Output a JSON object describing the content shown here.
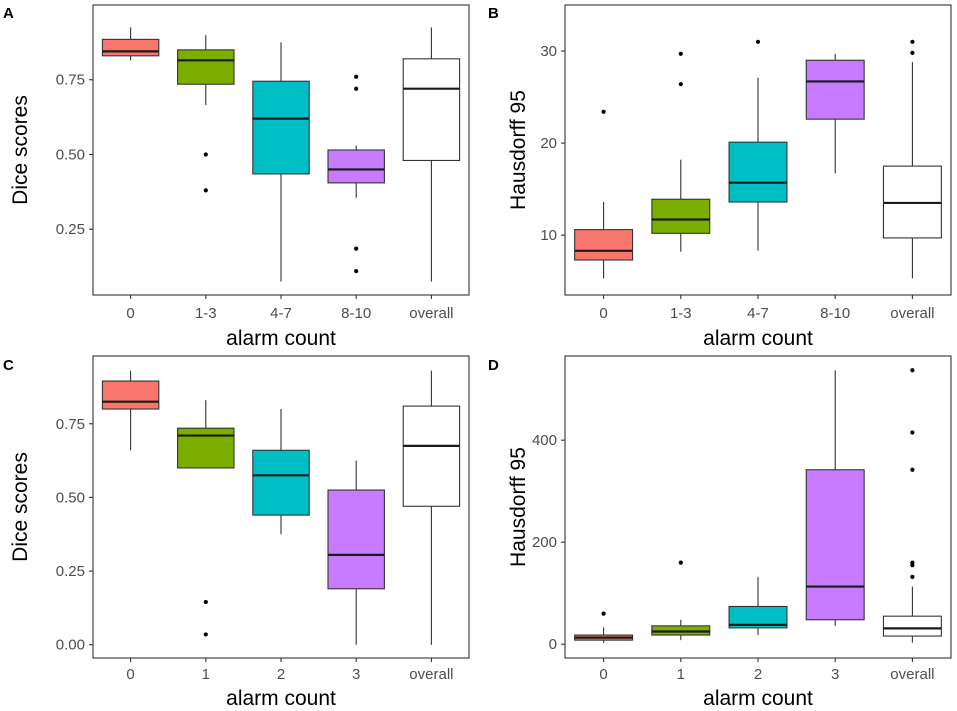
{
  "chart_data": [
    {
      "panel": "A",
      "type": "box",
      "xlabel": "alarm count",
      "ylabel": "Dice scores",
      "ylim": [
        0.03,
        1.0
      ],
      "yticks": [
        "0.25",
        "0.50",
        "0.75"
      ],
      "ytick_values": [
        0.25,
        0.5,
        0.75
      ],
      "categories": [
        "0",
        "1-3",
        "4-7",
        "8-10",
        "overall"
      ],
      "boxes": [
        {
          "category": "0",
          "color": "#F8766D",
          "q1": 0.83,
          "median": 0.845,
          "q3": 0.885,
          "whisker_low": 0.815,
          "whisker_high": 0.925,
          "outliers": []
        },
        {
          "category": "1-3",
          "color": "#7CAE00",
          "q1": 0.735,
          "median": 0.815,
          "q3": 0.85,
          "whisker_low": 0.665,
          "whisker_high": 0.9,
          "outliers": [
            0.5,
            0.38
          ]
        },
        {
          "category": "4-7",
          "color": "#00BFC4",
          "q1": 0.435,
          "median": 0.62,
          "q3": 0.745,
          "whisker_low": 0.075,
          "whisker_high": 0.875,
          "outliers": []
        },
        {
          "category": "8-10",
          "color": "#C77CFF",
          "q1": 0.405,
          "median": 0.45,
          "q3": 0.515,
          "whisker_low": 0.355,
          "whisker_high": 0.53,
          "outliers": [
            0.76,
            0.72,
            0.185,
            0.11
          ]
        },
        {
          "category": "overall",
          "color": "#FFFFFF",
          "q1": 0.48,
          "median": 0.72,
          "q3": 0.82,
          "whisker_low": 0.075,
          "whisker_high": 0.925,
          "outliers": []
        }
      ]
    },
    {
      "panel": "B",
      "type": "box",
      "xlabel": "alarm count",
      "ylabel": "Hausdorff 95",
      "ylim": [
        3.5,
        35.0
      ],
      "yticks": [
        "10",
        "20",
        "30"
      ],
      "ytick_values": [
        10,
        20,
        30
      ],
      "categories": [
        "0",
        "1-3",
        "4-7",
        "8-10",
        "overall"
      ],
      "boxes": [
        {
          "category": "0",
          "color": "#F8766D",
          "q1": 7.3,
          "median": 8.3,
          "q3": 10.6,
          "whisker_low": 5.3,
          "whisker_high": 13.6,
          "outliers": [
            23.4
          ]
        },
        {
          "category": "1-3",
          "color": "#7CAE00",
          "q1": 10.2,
          "median": 11.7,
          "q3": 13.9,
          "whisker_low": 8.2,
          "whisker_high": 18.2,
          "outliers": [
            29.7,
            26.4
          ]
        },
        {
          "category": "4-7",
          "color": "#00BFC4",
          "q1": 13.6,
          "median": 15.7,
          "q3": 20.1,
          "whisker_low": 8.3,
          "whisker_high": 27.1,
          "outliers": [
            31.0
          ]
        },
        {
          "category": "8-10",
          "color": "#C77CFF",
          "q1": 22.6,
          "median": 26.7,
          "q3": 29.0,
          "whisker_low": 16.7,
          "whisker_high": 29.7,
          "outliers": []
        },
        {
          "category": "overall",
          "color": "#FFFFFF",
          "q1": 9.7,
          "median": 13.5,
          "q3": 17.5,
          "whisker_low": 5.3,
          "whisker_high": 28.8,
          "outliers": [
            31.0,
            29.8
          ]
        }
      ]
    },
    {
      "panel": "C",
      "type": "box",
      "xlabel": "alarm count",
      "ylabel": "Dice scores",
      "ylim": [
        -0.045,
        0.98
      ],
      "yticks": [
        "0.00",
        "0.25",
        "0.50",
        "0.75"
      ],
      "ytick_values": [
        0.0,
        0.25,
        0.5,
        0.75
      ],
      "categories": [
        "0",
        "1",
        "2",
        "3",
        "overall"
      ],
      "boxes": [
        {
          "category": "0",
          "color": "#F8766D",
          "q1": 0.8,
          "median": 0.825,
          "q3": 0.895,
          "whisker_low": 0.66,
          "whisker_high": 0.93,
          "outliers": []
        },
        {
          "category": "1",
          "color": "#7CAE00",
          "q1": 0.6,
          "median": 0.71,
          "q3": 0.735,
          "whisker_low": 0.6,
          "whisker_high": 0.83,
          "outliers": [
            0.145,
            0.035
          ]
        },
        {
          "category": "2",
          "color": "#00BFC4",
          "q1": 0.44,
          "median": 0.575,
          "q3": 0.66,
          "whisker_low": 0.375,
          "whisker_high": 0.8,
          "outliers": []
        },
        {
          "category": "3",
          "color": "#C77CFF",
          "q1": 0.19,
          "median": 0.305,
          "q3": 0.525,
          "whisker_low": 0.0,
          "whisker_high": 0.625,
          "outliers": []
        },
        {
          "category": "overall",
          "color": "#FFFFFF",
          "q1": 0.47,
          "median": 0.675,
          "q3": 0.81,
          "whisker_low": 0.0,
          "whisker_high": 0.93,
          "outliers": []
        }
      ]
    },
    {
      "panel": "D",
      "type": "box",
      "xlabel": "alarm count",
      "ylabel": "Hausdorff 95",
      "ylim": [
        -27,
        565
      ],
      "yticks": [
        "0",
        "200",
        "400"
      ],
      "ytick_values": [
        0,
        200,
        400
      ],
      "categories": [
        "0",
        "1",
        "2",
        "3",
        "overall"
      ],
      "boxes": [
        {
          "category": "0",
          "color": "#F8766D",
          "q1": 8,
          "median": 13,
          "q3": 18,
          "whisker_low": 3,
          "whisker_high": 33,
          "outliers": [
            60
          ]
        },
        {
          "category": "1",
          "color": "#7CAE00",
          "q1": 18,
          "median": 25,
          "q3": 36,
          "whisker_low": 8,
          "whisker_high": 48,
          "outliers": [
            160
          ]
        },
        {
          "category": "2",
          "color": "#00BFC4",
          "q1": 32,
          "median": 38,
          "q3": 74,
          "whisker_low": 18,
          "whisker_high": 132,
          "outliers": []
        },
        {
          "category": "3",
          "color": "#C77CFF",
          "q1": 48,
          "median": 113,
          "q3": 342,
          "whisker_low": 36,
          "whisker_high": 537,
          "outliers": []
        },
        {
          "category": "overall",
          "color": "#FFFFFF",
          "q1": 16,
          "median": 31,
          "q3": 55,
          "whisker_low": 3,
          "whisker_high": 113,
          "outliers": [
            537,
            415,
            342,
            160,
            155,
            132
          ]
        }
      ]
    }
  ]
}
